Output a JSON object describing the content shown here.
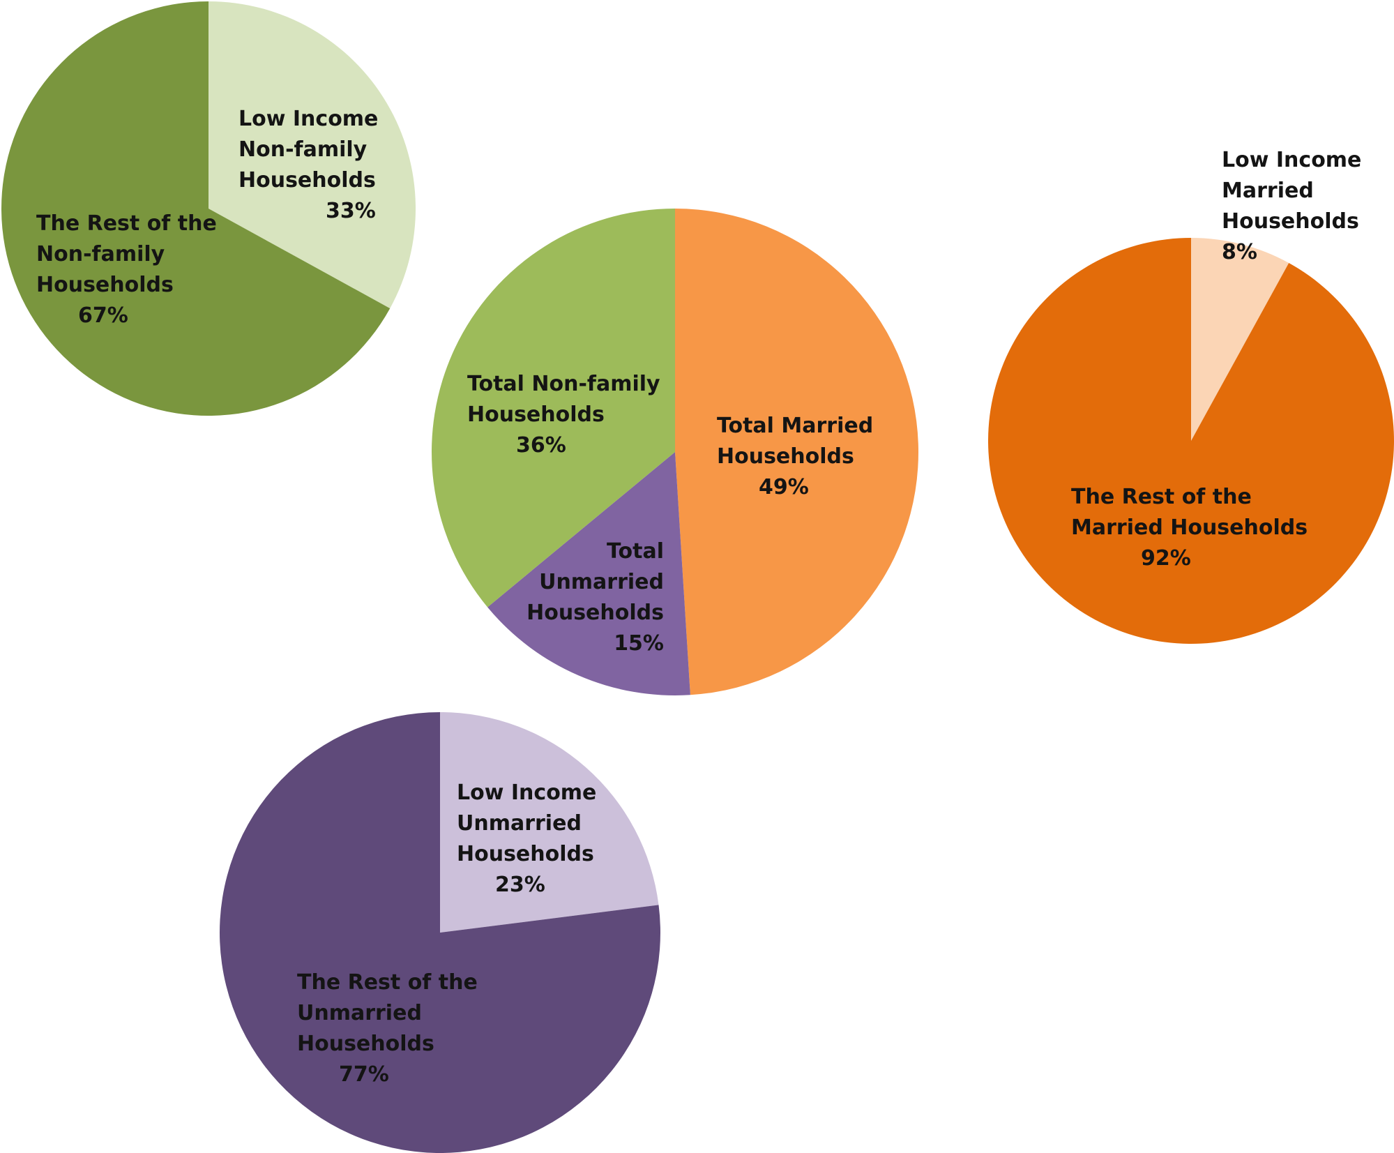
{
  "chart_data": [
    {
      "type": "pie",
      "id": "nonfamily-breakdown",
      "slices": [
        {
          "label": [
            "Low Income",
            "Non-family",
            "Households"
          ],
          "pct_label": "33%",
          "value": 33,
          "color": "#d8e4bf"
        },
        {
          "label": [
            "The Rest of the",
            "Non-family",
            "Households"
          ],
          "pct_label": "67%",
          "value": 67,
          "color": "#7a963e"
        }
      ]
    },
    {
      "type": "pie",
      "id": "total-households",
      "slices": [
        {
          "label": [
            "Total Married",
            "Households"
          ],
          "pct_label": "49%",
          "value": 49,
          "color": "#f79747"
        },
        {
          "label": [
            "Total",
            "Unmarried",
            "Households"
          ],
          "pct_label": "15%",
          "value": 15,
          "color": "#8064a1"
        },
        {
          "label": [
            "Total Non-family",
            "Households"
          ],
          "pct_label": "36%",
          "value": 36,
          "color": "#9dbb5a"
        }
      ]
    },
    {
      "type": "pie",
      "id": "married-breakdown",
      "slices": [
        {
          "label": [
            "Low Income",
            "Married",
            "Households"
          ],
          "pct_label": "8%",
          "value": 8,
          "color": "#fbd5b5"
        },
        {
          "label": [
            "The Rest of the",
            "Married Households"
          ],
          "pct_label": "92%",
          "value": 92,
          "color": "#e36c0a"
        }
      ]
    },
    {
      "type": "pie",
      "id": "unmarried-breakdown",
      "slices": [
        {
          "label": [
            "Low Income",
            "Unmarried",
            "Households"
          ],
          "pct_label": "23%",
          "value": 23,
          "color": "#ccc0da"
        },
        {
          "label": [
            "The Rest of the",
            "Unmarried",
            "Households"
          ],
          "pct_label": "77%",
          "value": 77,
          "color": "#5f4a7a"
        }
      ]
    }
  ]
}
